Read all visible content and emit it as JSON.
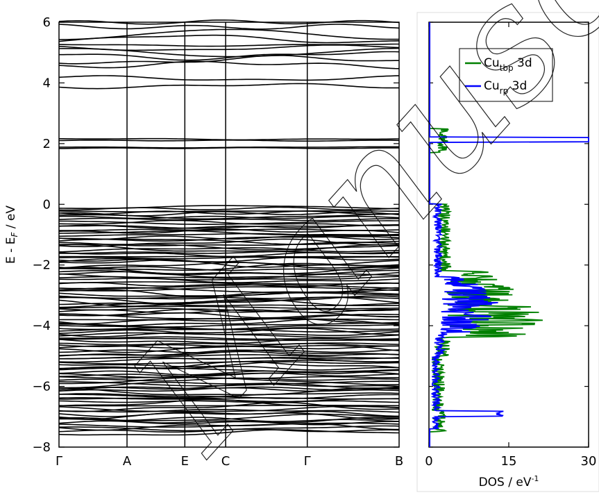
{
  "chart_data": [
    {
      "type": "line",
      "panel": "band-structure",
      "ylabel_main": "E - E",
      "ylabel_sub": "F",
      "ylabel_tail": " / eV",
      "ylim": [
        -8,
        6
      ],
      "yticks": [
        -8,
        -6,
        -4,
        -2,
        0,
        2,
        4,
        6
      ],
      "ytick_labels": [
        "−8",
        "−6",
        "−4",
        "−2",
        "0",
        "2",
        "4",
        "6"
      ],
      "kpoints": [
        {
          "label": "Γ",
          "pos": 0.0
        },
        {
          "label": "A",
          "pos": 0.2
        },
        {
          "label": "E",
          "pos": 0.37
        },
        {
          "label": "C",
          "pos": 0.49
        },
        {
          "label": "Γ",
          "pos": 0.73
        },
        {
          "label": "B",
          "pos": 1.0
        }
      ],
      "bands_unoccupied": [
        3.9,
        4.15,
        4.6,
        4.75,
        4.9,
        5.0,
        5.15,
        5.25,
        5.45,
        5.6,
        5.85,
        6.0
      ],
      "bands_gap_states": [
        1.85,
        1.88,
        2.1,
        2.15
      ],
      "bands_valence_range": [
        -7.5,
        0.0
      ]
    },
    {
      "type": "line",
      "panel": "dos",
      "xlabel": "DOS / eV",
      "xlabel_sup": "-1",
      "xlim": [
        0,
        30
      ],
      "xticks": [
        0,
        15,
        30
      ],
      "ylim": [
        -8,
        6
      ],
      "series": [
        {
          "name_main": "Cu",
          "name_sub": "tbp",
          "name_tail": " 3d",
          "color": "#008000"
        },
        {
          "name_main": "Cu",
          "name_sub": "rp",
          "name_tail": " 3d",
          "color": "#0000ff"
        }
      ]
    }
  ],
  "colors": {
    "bands": "#000000",
    "tbp": "#008000",
    "rp": "#0000ff"
  },
  "watermark": "Manuscript"
}
